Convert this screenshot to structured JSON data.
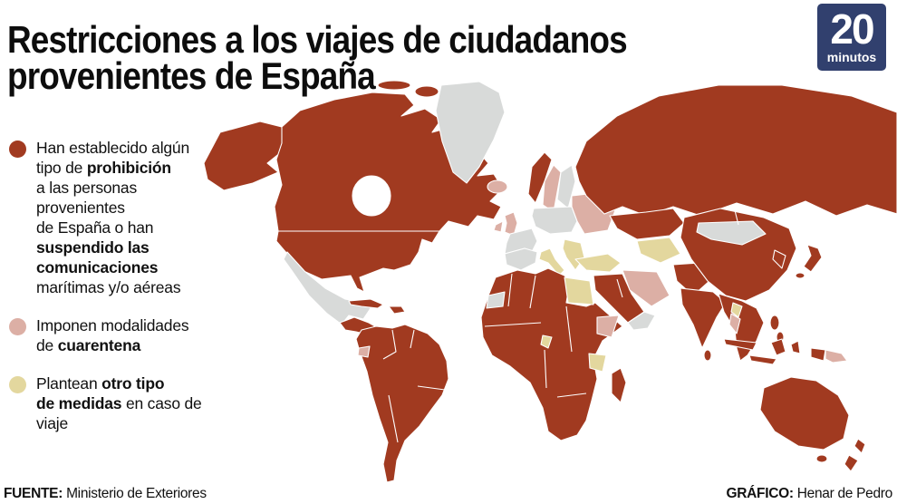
{
  "header": {
    "title_line1": "Restricciones a los viajes de ciudadanos",
    "title_line2": "provenientes de España"
  },
  "logo": {
    "number": "20",
    "word": "minutos",
    "bg_color": "#31406E"
  },
  "legend": {
    "items": [
      {
        "color_key": "prohibition",
        "lines": [
          [
            {
              "t": "Han establecido algún"
            }
          ],
          [
            {
              "t": "tipo de "
            },
            {
              "t": "prohibición",
              "b": true
            }
          ],
          [
            {
              "t": "a las personas"
            }
          ],
          [
            {
              "t": "provenientes"
            }
          ],
          [
            {
              "t": "de España o han"
            }
          ],
          [
            {
              "t": "suspendido las",
              "b": true
            }
          ],
          [
            {
              "t": "comunicaciones",
              "b": true
            }
          ],
          [
            {
              "t": "marítimas y/o aéreas"
            }
          ]
        ]
      },
      {
        "color_key": "quarantine",
        "lines": [
          [
            {
              "t": "Imponen modalidades"
            }
          ],
          [
            {
              "t": "de "
            },
            {
              "t": "cuarentena",
              "b": true
            }
          ]
        ]
      },
      {
        "color_key": "other",
        "lines": [
          [
            {
              "t": "Plantean "
            },
            {
              "t": "otro tipo",
              "b": true
            }
          ],
          [
            {
              "t": "de medidas",
              "b": true
            },
            {
              "t": " en caso de viaje"
            }
          ]
        ]
      }
    ]
  },
  "map": {
    "colors": {
      "prohibition": "#A13A20",
      "quarantine": "#DCAFA5",
      "other": "#E3D79E",
      "none": "#D8DAD9"
    },
    "stroke": "#FFFFFF",
    "regions": {
      "alaska": "prohibition",
      "canada": "prohibition",
      "greenland": "none",
      "iceland": "quarantine",
      "usa": "prohibition",
      "mexico": "none",
      "central-america": "prohibition",
      "cuba": "prohibition",
      "hispaniola": "prohibition",
      "south-america": "prohibition",
      "ecuador": "quarantine",
      "uk": "quarantine",
      "ireland": "quarantine",
      "norway": "prohibition",
      "sweden": "quarantine",
      "finland": "none",
      "denmark": "prohibition",
      "iberia": "none",
      "france": "none",
      "central-europe": "none",
      "italy": "other",
      "balkans": "other",
      "eastern-europe": "quarantine",
      "russia": "prohibition",
      "kazakhstan": "prohibition",
      "central-asia": "other",
      "turkey": "other",
      "iran": "quarantine",
      "middle-east": "prohibition",
      "yemen-oman": "none",
      "afghanistan-pakistan": "prohibition",
      "india": "prohibition",
      "sri-lanka": "prohibition",
      "china": "prohibition",
      "mongolia": "none",
      "korea": "prohibition",
      "japan": "prohibition",
      "southeast-asia": "prohibition",
      "laos": "other",
      "thailand": "quarantine",
      "philippines": "prohibition",
      "indonesia": "prohibition",
      "west-papua": "prohibition",
      "papua-new-guinea": "quarantine",
      "australia": "prohibition",
      "tasmania": "prohibition",
      "new-zealand": "prohibition",
      "africa": "prohibition",
      "egypt": "other",
      "western-sahara": "none",
      "ethiopia": "quarantine",
      "tanzania": "other",
      "cameroon": "other",
      "madagascar": "prohibition"
    }
  },
  "footer": {
    "source_label": "FUENTE:",
    "source_text": " Ministerio de Exteriores",
    "credit_label": "GRÁFICO:",
    "credit_text": " Henar de Pedro"
  }
}
